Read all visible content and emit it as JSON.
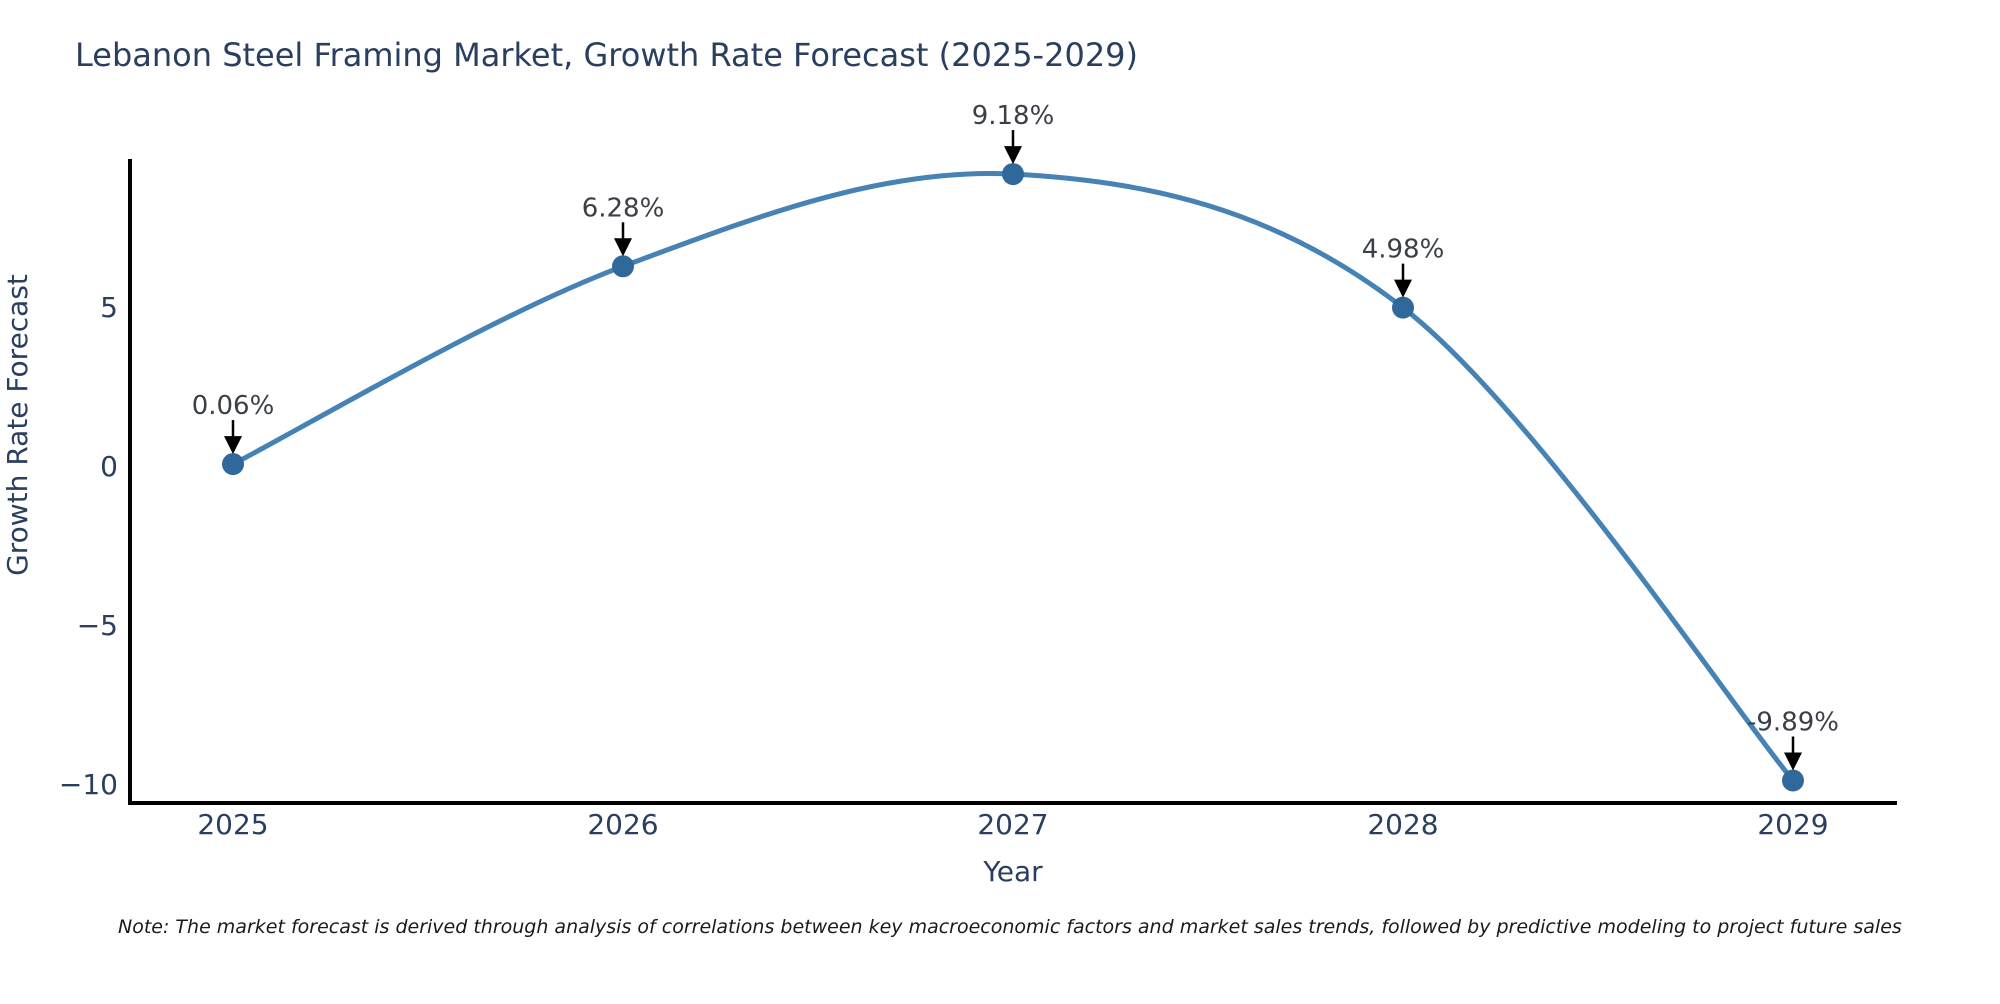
{
  "title": "Lebanon Steel Framing Market, Growth Rate Forecast (2025-2029)",
  "note": "Note: The market forecast is derived through analysis of correlations between key macroeconomic factors and market sales trends, followed by predictive modeling to project future sales",
  "chart_data": {
    "type": "line",
    "title": "Lebanon Steel Framing Market, Growth Rate Forecast (2025-2029)",
    "xlabel": "Year",
    "ylabel": "Growth Rate Forecast",
    "x": [
      2025,
      2026,
      2027,
      2028,
      2029
    ],
    "x_tick_labels": [
      "2025",
      "2026",
      "2027",
      "2028",
      "2029"
    ],
    "series": [
      {
        "name": "Growth Rate Forecast",
        "values": [
          0.06,
          6.28,
          9.18,
          4.98,
          -9.89
        ]
      }
    ],
    "point_labels": [
      "0.06%",
      "6.28%",
      "9.18%",
      "4.98%",
      "-9.89%"
    ],
    "y_ticks": [
      5,
      0,
      -5,
      -10
    ],
    "y_tick_labels": [
      "5",
      "0",
      "−5",
      "−10"
    ],
    "ylim": [
      -10.8,
      10.6
    ],
    "x_range": [
      2024.74,
      2029.27
    ],
    "line_shape": "spline",
    "grid": false,
    "legend": "none",
    "annotation_style": "black-down-arrow",
    "colors": {
      "line": "#4682b4",
      "marker": "#31689b",
      "axis": "#000000",
      "text": "#2a3f5f",
      "annotation_text": "#3b3f46",
      "arrow": "#000000"
    }
  }
}
